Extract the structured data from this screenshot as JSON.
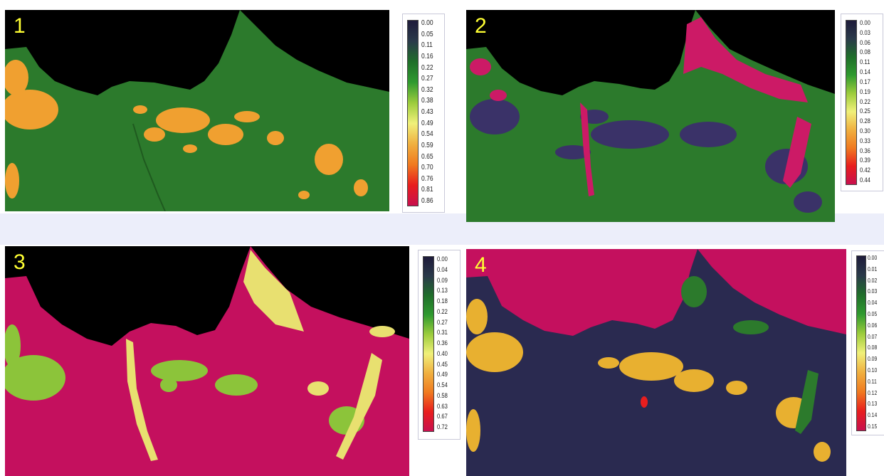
{
  "panels": [
    {
      "number": "1",
      "scale": [
        "0.00",
        "0.05",
        "0.11",
        "0.16",
        "0.22",
        "0.27",
        "0.32",
        "0.38",
        "0.43",
        "0.49",
        "0.54",
        "0.59",
        "0.65",
        "0.70",
        "0.76",
        "0.81",
        "0.86"
      ],
      "colors": {
        "sea": "#000000",
        "land": "#2c7a2c",
        "patch": "#f0a030",
        "accent": "#c0104a"
      }
    },
    {
      "number": "2",
      "scale": [
        "0.00",
        "0.03",
        "0.06",
        "0.08",
        "0.11",
        "0.14",
        "0.17",
        "0.19",
        "0.22",
        "0.25",
        "0.28",
        "0.30",
        "0.33",
        "0.36",
        "0.39",
        "0.42",
        "0.44"
      ],
      "colors": {
        "sea": "#000000",
        "land": "#2c7a2c",
        "patch": "#3a3268",
        "accent": "#cc1a66"
      }
    },
    {
      "number": "3",
      "scale": [
        "0.00",
        "0.04",
        "0.09",
        "0.13",
        "0.18",
        "0.22",
        "0.27",
        "0.31",
        "0.36",
        "0.40",
        "0.45",
        "0.49",
        "0.54",
        "0.58",
        "0.63",
        "0.67",
        "0.72"
      ],
      "colors": {
        "sea": "#000000",
        "land": "#c4105e",
        "patch": "#8cc43a",
        "accent": "#e8e070"
      }
    },
    {
      "number": "4",
      "scale": [
        "0.00",
        "0.01",
        "0.02",
        "0.03",
        "0.04",
        "0.05",
        "0.06",
        "0.07",
        "0.08",
        "0.09",
        "0.10",
        "0.11",
        "0.12",
        "0.13",
        "0.14",
        "0.15"
      ],
      "colors": {
        "sea": "#c4105e",
        "land": "#2a2a50",
        "patch": "#e8b030",
        "accent": "#2c7a2c"
      }
    }
  ],
  "legend_gradient": [
    "#1e1b3a",
    "#2a3a4a",
    "#1f6e2a",
    "#2f9a2f",
    "#9ccc3c",
    "#f0f07a",
    "#f0b040",
    "#f07a20",
    "#e81e1e",
    "#c8104e"
  ]
}
